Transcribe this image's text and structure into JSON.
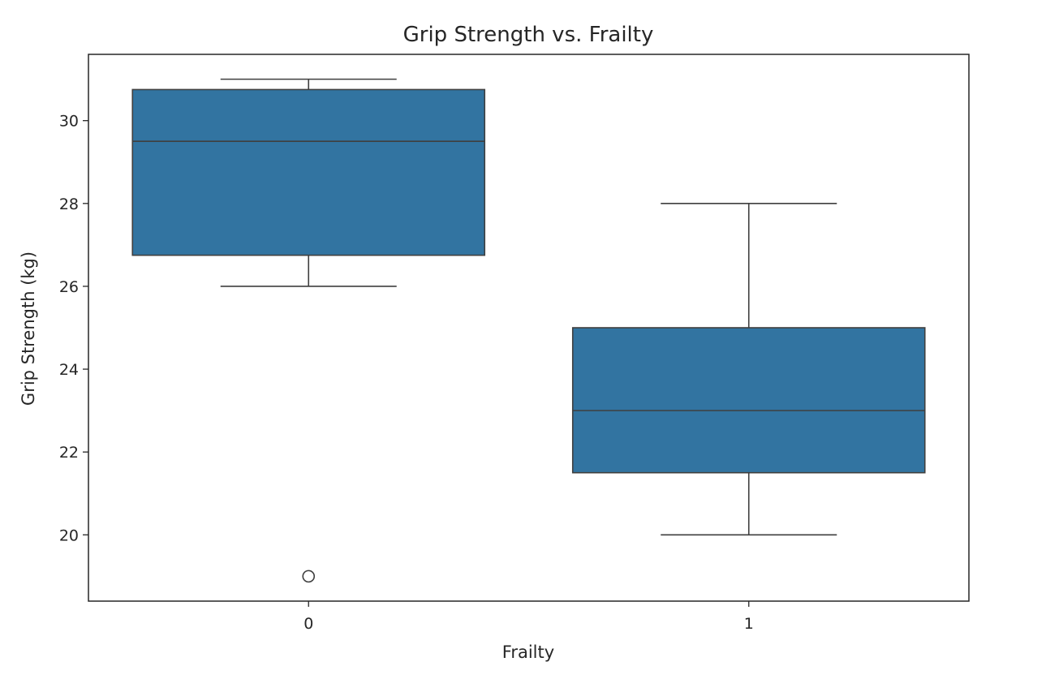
{
  "chart_data": {
    "type": "box",
    "title": "Grip Strength vs. Frailty",
    "xlabel": "Frailty",
    "ylabel": "Grip Strength (kg)",
    "categories": [
      "0",
      "1"
    ],
    "ylim": [
      18.4,
      31.6
    ],
    "yticks": [
      20,
      22,
      24,
      26,
      28,
      30
    ],
    "grid": false,
    "legend": "none",
    "colors": {
      "box_fill": "#3274a1",
      "line": "#3f3f3f",
      "axis": "#262626",
      "text": "#262626",
      "background": "#ffffff"
    },
    "boxes": [
      {
        "category": "0",
        "whisker_low": 26.0,
        "q1": 26.75,
        "median": 29.5,
        "q3": 30.75,
        "whisker_high": 31.0,
        "outliers": [
          19.0
        ]
      },
      {
        "category": "1",
        "whisker_low": 20.0,
        "q1": 21.5,
        "median": 23.0,
        "q3": 25.0,
        "whisker_high": 28.0,
        "outliers": []
      }
    ]
  }
}
